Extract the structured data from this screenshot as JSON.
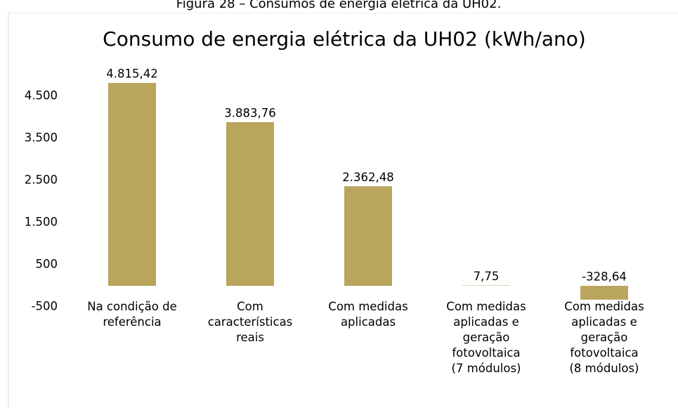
{
  "caption": "Figura 28 – Consumos de energia elétrica da UH02.",
  "chart_data": {
    "type": "bar",
    "title": "Consumo de energia elétrica da UH02 (kWh/ano)",
    "categories": [
      "Na condição de\nreferência",
      "Com\ncaracterísticas\nreais",
      "Com medidas\naplicadas",
      "Com medidas\naplicadas e\ngeração\nfotovoltaica\n(7 módulos)",
      "Com medidas\naplicadas e\ngeração\nfotovoltaica\n(8 módulos)"
    ],
    "values": [
      4815.42,
      3883.76,
      2362.48,
      7.75,
      -328.64
    ],
    "value_labels": [
      "4.815,42",
      "3.883,76",
      "2.362,48",
      "7,75",
      "-328,64"
    ],
    "color": "#b9a55c",
    "ylim": [
      -500,
      5500
    ],
    "yticks": [
      {
        "value": -500,
        "label": "-500"
      },
      500,
      {
        "value": 1500,
        "label": "1.500"
      },
      {
        "value": 2500,
        "label": "2.500"
      },
      {
        "value": 3500,
        "label": "3.500"
      },
      {
        "value": 4500,
        "label": "4.500"
      }
    ],
    "grid": false
  }
}
